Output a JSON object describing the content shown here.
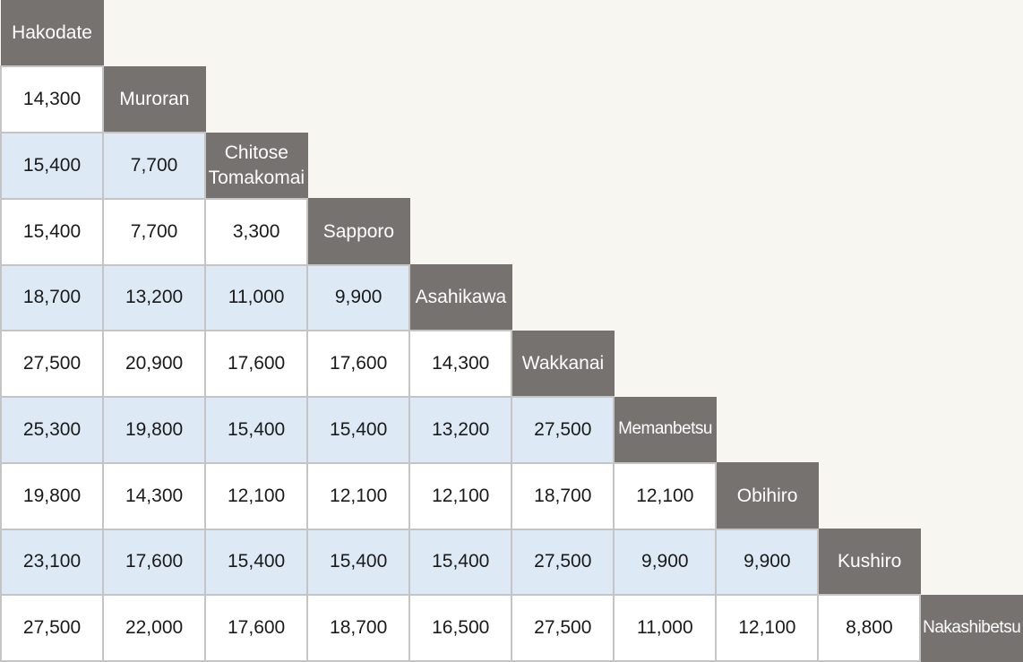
{
  "stations": [
    [
      "Hakodate"
    ],
    [
      "Muroran"
    ],
    [
      "Chitose",
      "Tomakomai"
    ],
    [
      "Sapporo"
    ],
    [
      "Asahikawa"
    ],
    [
      "Wakkanai"
    ],
    [
      "Memanbetsu"
    ],
    [
      "Obihiro"
    ],
    [
      "Kushiro"
    ],
    [
      "Nakashibetsu"
    ]
  ],
  "fares": [
    [],
    [
      "14,300"
    ],
    [
      "15,400",
      "7,700"
    ],
    [
      "15,400",
      "7,700",
      "3,300"
    ],
    [
      "18,700",
      "13,200",
      "11,000",
      "9,900"
    ],
    [
      "27,500",
      "20,900",
      "17,600",
      "17,600",
      "14,300"
    ],
    [
      "25,300",
      "19,800",
      "15,400",
      "15,400",
      "13,200",
      "27,500"
    ],
    [
      "19,800",
      "14,300",
      "12,100",
      "12,100",
      "12,100",
      "18,700",
      "12,100"
    ],
    [
      "23,100",
      "17,600",
      "15,400",
      "15,400",
      "15,400",
      "27,500",
      "9,900",
      "9,900"
    ],
    [
      "27,500",
      "22,000",
      "17,600",
      "18,700",
      "16,500",
      "27,500",
      "11,000",
      "12,100",
      "8,800"
    ]
  ],
  "colors": {
    "station_bg": "#767270",
    "row_shade": "#ddeaf6",
    "page_bg": "#f7f6f0"
  }
}
